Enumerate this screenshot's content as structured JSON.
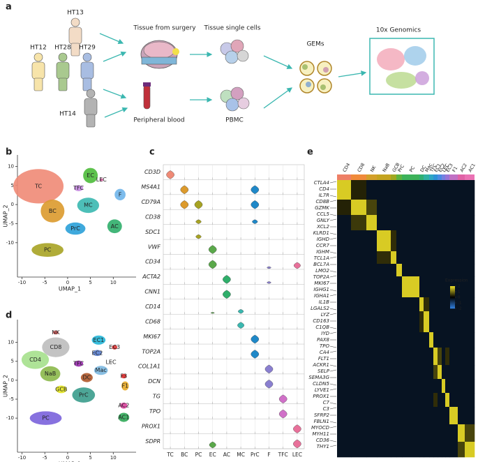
{
  "panel_labels": [
    "a",
    "b",
    "c",
    "d",
    "e"
  ],
  "a": {
    "donors": [
      {
        "label": "HT13",
        "color": "#f3dcc6"
      },
      {
        "label": "HT12",
        "color": "#f7e4aa"
      },
      {
        "label": "HT28",
        "color": "#a9c98f"
      },
      {
        "label": "HT29",
        "color": "#a8bde2"
      },
      {
        "label": "HT14",
        "color": "#b3b3b3"
      }
    ],
    "steps": {
      "tissue": "Tissue from surgery",
      "blood": "Peripheral blood",
      "cells": "Tissue single cells",
      "pbmc": "PBMC",
      "gems": "GEMs",
      "genomics": "10x Genomics"
    }
  },
  "b": {
    "x_label": "UMAP_1",
    "y_label": "UMAP_2",
    "xlim": [
      -11,
      15
    ],
    "ylim": [
      -19,
      13
    ],
    "xticks": [
      -10,
      -5,
      0,
      5,
      10
    ],
    "yticks": [
      10,
      5,
      0,
      -5,
      -10
    ],
    "clusters": [
      {
        "label": "TC",
        "x": -6.4,
        "y": 4.8,
        "color": "#ef8a76"
      },
      {
        "label": "BC",
        "x": -3.3,
        "y": -1.7,
        "color": "#dc9a2c"
      },
      {
        "label": "PC",
        "x": -4.4,
        "y": -11.9,
        "color": "#a7a323"
      },
      {
        "label": "TFC",
        "x": 2.4,
        "y": 4.3,
        "color": "#c58ae0"
      },
      {
        "label": "LEC",
        "x": 7.4,
        "y": 6.5,
        "color": "#e870b0"
      },
      {
        "label": "EC",
        "x": 5,
        "y": 7.6,
        "color": "#4cbb3a"
      },
      {
        "label": "MC",
        "x": 4.5,
        "y": -0.2,
        "color": "#3ab8b0"
      },
      {
        "label": "F",
        "x": 11.5,
        "y": 2.6,
        "color": "#6fb5ea"
      },
      {
        "label": "PrC",
        "x": 1.7,
        "y": -6.3,
        "color": "#2aa0d8"
      },
      {
        "label": "AC",
        "x": 10.3,
        "y": -5.7,
        "color": "#2fae6a"
      }
    ]
  },
  "c": {
    "genes": [
      "CD3D",
      "MS4A1",
      "CD79A",
      "CD38",
      "SDC1",
      "VWF",
      "CD34",
      "ACTA2",
      "CNN1",
      "CD14",
      "CD68",
      "MKI67",
      "TOP2A",
      "COL1A1",
      "DCN",
      "TG",
      "TPO",
      "PROX1",
      "SDPR"
    ],
    "categories": [
      "TC",
      "BC",
      "PC",
      "EC",
      "AC",
      "MC",
      "PrC",
      "F",
      "TFC",
      "LEC"
    ],
    "colors": [
      "#ef8a76",
      "#dc9a2c",
      "#a7a323",
      "#5aa84a",
      "#2fae6a",
      "#3ab8b0",
      "#1f88c8",
      "#8a7fd0",
      "#d070c8",
      "#e8709a"
    ],
    "values": [
      [
        2,
        0,
        0,
        0,
        0,
        0,
        0,
        0,
        0,
        0
      ],
      [
        0,
        2,
        0,
        0,
        0,
        0,
        2,
        0,
        0,
        0
      ],
      [
        0,
        2,
        2,
        0,
        0,
        0,
        2,
        0,
        0,
        0
      ],
      [
        0,
        0,
        1,
        0,
        0,
        0,
        1,
        0,
        0,
        0
      ],
      [
        0,
        0,
        1,
        0,
        0,
        0,
        0,
        0,
        0,
        0
      ],
      [
        0,
        0,
        0,
        2,
        0,
        0,
        0,
        0,
        0,
        0
      ],
      [
        0,
        0,
        0,
        2,
        0,
        0,
        0,
        0.5,
        0,
        1.5
      ],
      [
        0,
        0,
        0,
        0,
        2,
        0,
        0,
        0.5,
        0,
        0
      ],
      [
        0,
        0,
        0,
        0,
        2,
        0,
        0,
        0,
        0,
        0
      ],
      [
        0,
        0,
        0,
        0.3,
        0,
        1,
        0,
        0,
        0,
        0
      ],
      [
        0,
        0,
        0,
        0,
        0,
        1.5,
        0,
        0,
        0,
        0
      ],
      [
        0,
        0,
        0,
        0,
        0,
        0,
        2,
        0,
        0,
        0
      ],
      [
        0,
        0,
        0,
        0,
        0,
        0,
        2,
        0,
        0,
        0
      ],
      [
        0,
        0,
        0,
        0,
        0,
        0,
        0,
        2,
        0,
        0
      ],
      [
        0,
        0,
        0,
        0,
        0,
        0,
        0,
        2,
        0,
        0
      ],
      [
        0,
        0,
        0,
        0,
        0,
        0,
        0,
        0,
        2,
        0
      ],
      [
        0,
        0,
        0,
        0,
        0,
        0,
        0,
        0,
        2,
        0
      ],
      [
        0,
        0,
        0,
        0,
        0,
        0,
        0,
        0,
        0,
        2
      ],
      [
        0,
        0,
        0,
        1.5,
        0,
        0,
        0,
        0,
        0,
        2
      ]
    ]
  },
  "d": {
    "x_label": "UMAP_1",
    "y_label": "UMAP_2",
    "xlim": [
      -11,
      15
    ],
    "ylim": [
      -19,
      16
    ],
    "xticks": [
      -10,
      -5,
      0,
      5,
      10
    ],
    "yticks": [
      10,
      5,
      0,
      -5,
      -10
    ],
    "clusters": [
      {
        "label": "NK",
        "x": -2.6,
        "y": 12.6,
        "color": "#e85a5a"
      },
      {
        "label": "CD8",
        "x": -2.6,
        "y": 8.7,
        "color": "#bdbdbd"
      },
      {
        "label": "CD4",
        "x": -7.1,
        "y": 5.4,
        "color": "#a5e08c"
      },
      {
        "label": "NaB",
        "x": -3.8,
        "y": 1.7,
        "color": "#8bb84a"
      },
      {
        "label": "GCB",
        "x": -1.4,
        "y": -2.4,
        "color": "#e3e41f"
      },
      {
        "label": "PC",
        "x": -4.8,
        "y": -10,
        "color": "#7a62dc"
      },
      {
        "label": "TFC",
        "x": 2.4,
        "y": 4.4,
        "color": "#9b2bb0"
      },
      {
        "label": "DC",
        "x": 4.2,
        "y": 0.7,
        "color": "#b0582a"
      },
      {
        "label": "Mac",
        "x": 7.3,
        "y": 2.6,
        "color": "#7cb8e0"
      },
      {
        "label": "PrC",
        "x": 3.5,
        "y": -3.9,
        "color": "#3a9c8c"
      },
      {
        "label": "LEC",
        "x": 9.5,
        "y": 4.8,
        "color": "#d6d6d6"
      },
      {
        "label": "EC1",
        "x": 6.8,
        "y": 10.6,
        "color": "#22b6d8"
      },
      {
        "label": "EC2",
        "x": 6.5,
        "y": 7.2,
        "color": "#5a80d0"
      },
      {
        "label": "EC3",
        "x": 10.3,
        "y": 8.7,
        "color": "#d83030"
      },
      {
        "label": "F3",
        "x": 12.3,
        "y": 1.1,
        "color": "#e02828"
      },
      {
        "label": "F1",
        "x": 12.6,
        "y": -1.5,
        "color": "#e8a824"
      },
      {
        "label": "AC2",
        "x": 12.3,
        "y": -6.7,
        "color": "#e040a0"
      },
      {
        "label": "AC1",
        "x": 12.3,
        "y": -9.8,
        "color": "#30a858"
      }
    ]
  },
  "e": {
    "legend_title": "Expression",
    "clim": [
      -2,
      2
    ],
    "cticks": [
      2,
      1,
      0,
      -1,
      -2
    ],
    "columns": [
      {
        "label": "CD4",
        "color": "#ee7f66"
      },
      {
        "label": "CD8",
        "color": "#f08a3a"
      },
      {
        "label": "NK",
        "color": "#d3a02a"
      },
      {
        "label": "NaB",
        "color": "#c4a420"
      },
      {
        "label": "GCB",
        "color": "#a0a820"
      },
      {
        "label": "PrC",
        "color": "#5cb440"
      },
      {
        "label": "PC",
        "color": "#3cb25a"
      },
      {
        "label": "DC",
        "color": "#2fb074"
      },
      {
        "label": "Mac",
        "color": "#2eb2a2"
      },
      {
        "label": "TFC",
        "color": "#2ea6c4"
      },
      {
        "label": "EC1",
        "color": "#2c92d6"
      },
      {
        "label": "EC2",
        "color": "#4c8ae2"
      },
      {
        "label": "LEC",
        "color": "#7480e0"
      },
      {
        "label": "EC3",
        "color": "#9874d6"
      },
      {
        "label": "F1",
        "color": "#c070c4"
      },
      {
        "label": "AC2",
        "color": "#e062a6"
      },
      {
        "label": "AC1",
        "color": "#ea72b4"
      }
    ],
    "matrix": [
      [
        1.8,
        0.3,
        -0.3,
        -0.3,
        -0.3,
        -0.3,
        -0.3,
        -0.3,
        -0.3,
        -0.3,
        -0.3,
        -0.3,
        -0.3,
        -0.3,
        -0.3,
        -0.3,
        -0.3
      ],
      [
        0.3,
        1.8,
        0.6,
        -0.3,
        -0.3,
        -0.3,
        -0.3,
        -0.3,
        -0.3,
        -0.3,
        -0.3,
        -0.3,
        -0.3,
        -0.3,
        -0.3,
        -0.3,
        -0.3
      ],
      [
        -0.3,
        0.5,
        1.8,
        -0.3,
        -0.3,
        -0.3,
        -0.3,
        -0.3,
        -0.3,
        -0.3,
        -0.3,
        -0.3,
        -0.3,
        -0.3,
        -0.3,
        -0.3,
        -0.3
      ],
      [
        -0.3,
        -0.3,
        -0.3,
        1.8,
        0.4,
        -0.3,
        -0.3,
        -0.3,
        -0.3,
        -0.3,
        -0.3,
        -0.3,
        -0.3,
        -0.3,
        -0.3,
        -0.3,
        -0.3
      ],
      [
        -0.3,
        -0.3,
        -0.3,
        0.4,
        1.8,
        -0.3,
        -0.3,
        -0.3,
        -0.3,
        -0.3,
        -0.3,
        -0.3,
        -0.3,
        -0.3,
        -0.3,
        -0.3,
        -0.3
      ],
      [
        -0.3,
        -0.3,
        -0.3,
        -0.3,
        -0.3,
        1.8,
        -0.3,
        -0.3,
        -0.3,
        -0.3,
        -0.3,
        -0.3,
        -0.3,
        -0.3,
        -0.3,
        -0.3,
        -0.3
      ],
      [
        -0.3,
        -0.3,
        -0.3,
        -0.3,
        -0.3,
        -0.3,
        1.8,
        -0.3,
        -0.3,
        -0.3,
        -0.3,
        -0.3,
        -0.3,
        -0.3,
        -0.3,
        -0.3,
        -0.3
      ],
      [
        -0.3,
        -0.3,
        -0.3,
        -0.3,
        -0.3,
        -0.3,
        -0.3,
        1.8,
        0.4,
        -0.3,
        -0.3,
        -0.3,
        -0.3,
        -0.3,
        -0.3,
        -0.3,
        -0.3
      ],
      [
        -0.3,
        -0.3,
        -0.3,
        -0.3,
        -0.3,
        -0.3,
        -0.3,
        0.4,
        1.8,
        -0.3,
        -0.3,
        -0.3,
        -0.3,
        -0.3,
        -0.3,
        -0.3,
        -0.3
      ],
      [
        -0.3,
        -0.3,
        -0.3,
        -0.3,
        -0.3,
        -0.3,
        -0.3,
        -0.3,
        -0.3,
        1.8,
        -0.3,
        -0.3,
        -0.3,
        -0.3,
        -0.3,
        -0.3,
        -0.3
      ],
      [
        -0.3,
        -0.3,
        -0.3,
        -0.3,
        -0.3,
        -0.3,
        -0.3,
        -0.3,
        -0.3,
        -0.3,
        1.8,
        0.6,
        -0.3,
        0.4,
        -0.3,
        -0.3,
        -0.3
      ],
      [
        -0.3,
        -0.3,
        -0.3,
        -0.3,
        -0.3,
        -0.3,
        -0.3,
        -0.3,
        -0.3,
        -0.3,
        0.6,
        1.8,
        -0.3,
        -0.3,
        -0.3,
        -0.3,
        -0.3
      ],
      [
        -0.3,
        -0.3,
        -0.3,
        -0.3,
        -0.3,
        -0.3,
        -0.3,
        -0.3,
        -0.3,
        -0.3,
        -0.3,
        -0.3,
        1.8,
        -0.3,
        -0.3,
        -0.3,
        -0.3
      ],
      [
        -0.3,
        -0.3,
        -0.3,
        -0.3,
        -0.3,
        -0.3,
        -0.3,
        -0.3,
        -0.3,
        -0.3,
        0.4,
        -0.3,
        -0.3,
        1.8,
        -0.3,
        -0.3,
        -0.3
      ],
      [
        -0.3,
        -0.3,
        -0.3,
        -0.3,
        -0.3,
        -0.3,
        -0.3,
        -0.3,
        -0.3,
        -0.3,
        -0.3,
        -0.3,
        -0.3,
        -0.3,
        1.8,
        -0.3,
        -0.3
      ],
      [
        -0.3,
        -0.3,
        -0.3,
        -0.3,
        -0.3,
        -0.3,
        -0.3,
        -0.3,
        -0.3,
        -0.3,
        -0.3,
        -0.3,
        -0.3,
        -0.3,
        -0.3,
        1.8,
        0.6
      ],
      [
        -0.3,
        -0.3,
        -0.3,
        -0.3,
        -0.3,
        -0.3,
        -0.3,
        -0.3,
        -0.3,
        -0.3,
        -0.3,
        -0.3,
        -0.3,
        -0.3,
        -0.3,
        0.6,
        1.8
      ]
    ],
    "genes": [
      {
        "label": "CTLA4",
        "color": "#2e9ad6"
      },
      {
        "label": "CD4",
        "color": "#2e9ad6"
      },
      {
        "label": "IL7R",
        "color": "#2e9ad6"
      },
      {
        "label": "CD8B",
        "color": "#111111"
      },
      {
        "label": "GZMK",
        "color": "#111111"
      },
      {
        "label": "CCL5",
        "color": "#111111"
      },
      {
        "label": "GNLY",
        "color": "#2e9ad6"
      },
      {
        "label": "XCL2",
        "color": "#2e9ad6"
      },
      {
        "label": "KLRD1",
        "color": "#2e9ad6"
      },
      {
        "label": "IGHD",
        "color": "#111111"
      },
      {
        "label": "CCR7",
        "color": "#111111"
      },
      {
        "label": "IGHM",
        "color": "#111111"
      },
      {
        "label": "TCL1A",
        "color": "#2e9ad6"
      },
      {
        "label": "BCL7A",
        "color": "#2e9ad6"
      },
      {
        "label": "LMO2",
        "color": "#2e9ad6"
      },
      {
        "label": "TOP2A",
        "color": "#111111"
      },
      {
        "label": "MKI67",
        "color": "#111111"
      },
      {
        "label": "IGHG1",
        "color": "#2e9ad6"
      },
      {
        "label": "IGHA1",
        "color": "#2e9ad6"
      },
      {
        "label": "IL1B",
        "color": "#111111"
      },
      {
        "label": "LGALS2",
        "color": "#111111"
      },
      {
        "label": "LYZ",
        "color": "#111111"
      },
      {
        "label": "CD163",
        "color": "#2e9ad6"
      },
      {
        "label": "C1QB",
        "color": "#2e9ad6"
      },
      {
        "label": "IYD",
        "color": "#111111"
      },
      {
        "label": "PAX8",
        "color": "#111111"
      },
      {
        "label": "TPO",
        "color": "#111111"
      },
      {
        "label": "CA4",
        "color": "#2e9ad6"
      },
      {
        "label": "FLT1",
        "color": "#2e9ad6"
      },
      {
        "label": "ACKR1",
        "color": "#111111"
      },
      {
        "label": "SELP",
        "color": "#111111"
      },
      {
        "label": "SEMA3G",
        "color": "#2e9ad6"
      },
      {
        "label": "CLDN5",
        "color": "#2e9ad6"
      },
      {
        "label": "LYVE1",
        "color": "#111111"
      },
      {
        "label": "PROX1",
        "color": "#111111"
      },
      {
        "label": "C7",
        "color": "#2e9ad6"
      },
      {
        "label": "C3",
        "color": "#2e9ad6"
      },
      {
        "label": "SFRP2",
        "color": "#111111"
      },
      {
        "label": "FBLN1",
        "color": "#111111"
      },
      {
        "label": "MYOCD",
        "color": "#2e9ad6"
      },
      {
        "label": "MYH11",
        "color": "#2e9ad6"
      },
      {
        "label": "CD36",
        "color": "#111111"
      },
      {
        "label": "THY1",
        "color": "#111111"
      }
    ]
  }
}
